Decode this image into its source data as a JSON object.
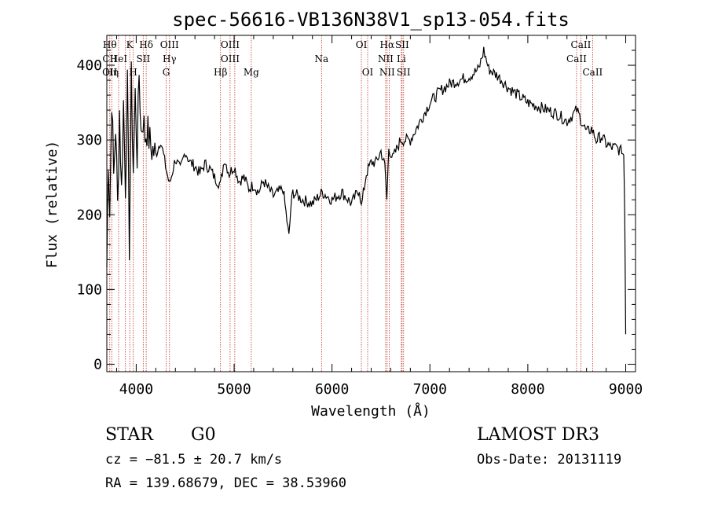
{
  "chart_data": {
    "type": "line",
    "title": "spec-56616-VB136N38V1_sp13-054.fits",
    "xlabel": "Wavelength (Å)",
    "ylabel": "Flux (relative)",
    "xlim": [
      3700,
      9100
    ],
    "ylim": [
      -10,
      440
    ],
    "x_ticks": [
      4000,
      5000,
      6000,
      7000,
      8000,
      9000
    ],
    "y_ticks": [
      0,
      100,
      200,
      300,
      400
    ],
    "line_color": "#000000",
    "marker_color": "#c0392b",
    "series": [
      {
        "name": "flux",
        "x": [
          3700,
          3715,
          3730,
          3750,
          3770,
          3790,
          3810,
          3830,
          3850,
          3870,
          3890,
          3910,
          3930,
          3950,
          3970,
          3990,
          4010,
          4030,
          4050,
          4070,
          4090,
          4110,
          4150,
          4200,
          4250,
          4300,
          4340,
          4400,
          4450,
          4500,
          4550,
          4600,
          4650,
          4700,
          4750,
          4800,
          4860,
          4900,
          4950,
          5000,
          5050,
          5100,
          5150,
          5200,
          5250,
          5300,
          5400,
          5500,
          5560,
          5580,
          5600,
          5650,
          5700,
          5800,
          5900,
          6000,
          6100,
          6200,
          6280,
          6300,
          6350,
          6400,
          6450,
          6500,
          6540,
          6560,
          6580,
          6620,
          6700,
          6800,
          6900,
          7000,
          7100,
          7200,
          7300,
          7400,
          7500,
          7550,
          7600,
          7700,
          7800,
          7900,
          8000,
          8100,
          8200,
          8300,
          8400,
          8500,
          8600,
          8650,
          8700,
          8750,
          8800,
          8850,
          8900,
          8950,
          8980,
          8990,
          9000
        ],
        "y": [
          130,
          280,
          200,
          360,
          250,
          320,
          210,
          340,
          230,
          350,
          240,
          370,
          160,
          380,
          260,
          360,
          280,
          390,
          310,
          330,
          305,
          315,
          290,
          280,
          300,
          265,
          240,
          275,
          260,
          285,
          270,
          265,
          255,
          268,
          262,
          250,
          240,
          275,
          255,
          265,
          245,
          250,
          235,
          240,
          230,
          245,
          225,
          235,
          170,
          210,
          230,
          225,
          220,
          215,
          230,
          220,
          230,
          215,
          235,
          210,
          255,
          270,
          270,
          285,
          265,
          220,
          290,
          275,
          300,
          300,
          325,
          350,
          365,
          375,
          380,
          385,
          395,
          420,
          395,
          385,
          370,
          360,
          350,
          345,
          340,
          335,
          325,
          340,
          310,
          315,
          300,
          305,
          295,
          290,
          290,
          285,
          280,
          200,
          40
        ]
      }
    ],
    "line_ids": [
      {
        "wl": 3730,
        "rows": [
          "Hθ",
          "CII",
          "OII"
        ]
      },
      {
        "wl": 3750,
        "rows": [
          "",
          "",
          "Hη"
        ]
      },
      {
        "wl": 3820,
        "rows": [
          "",
          "HeI",
          ""
        ]
      },
      {
        "wl": 3890,
        "rows": [
          "",
          "",
          ""
        ]
      },
      {
        "wl": 3934,
        "rows": [
          "K",
          "",
          ""
        ]
      },
      {
        "wl": 3970,
        "rows": [
          "",
          "",
          "H"
        ]
      },
      {
        "wl": 4072,
        "rows": [
          "",
          "SII",
          ""
        ]
      },
      {
        "wl": 4102,
        "rows": [
          "Hδ",
          "",
          ""
        ]
      },
      {
        "wl": 4306,
        "rows": [
          "",
          "",
          "G"
        ]
      },
      {
        "wl": 4340,
        "rows": [
          "OIII",
          "Hγ",
          ""
        ]
      },
      {
        "wl": 4861,
        "rows": [
          "",
          "",
          "Hβ"
        ]
      },
      {
        "wl": 4959,
        "rows": [
          "OIII",
          "OIII",
          ""
        ]
      },
      {
        "wl": 5007,
        "rows": [
          "",
          "",
          ""
        ]
      },
      {
        "wl": 5175,
        "rows": [
          "",
          "",
          "Mg"
        ]
      },
      {
        "wl": 5893,
        "rows": [
          "",
          "Na",
          ""
        ]
      },
      {
        "wl": 6300,
        "rows": [
          "OI",
          "",
          ""
        ]
      },
      {
        "wl": 6364,
        "rows": [
          "",
          "",
          "OI"
        ]
      },
      {
        "wl": 6548,
        "rows": [
          "",
          "NII",
          ""
        ]
      },
      {
        "wl": 6563,
        "rows": [
          "Hα",
          "",
          "NII"
        ]
      },
      {
        "wl": 6584,
        "rows": [
          "",
          "",
          ""
        ]
      },
      {
        "wl": 6716,
        "rows": [
          "SII",
          "",
          ""
        ]
      },
      {
        "wl": 6731,
        "rows": [
          "",
          "",
          "SII"
        ]
      },
      {
        "wl": 6708,
        "rows": [
          "",
          "Li",
          ""
        ]
      },
      {
        "wl": 8498,
        "rows": [
          "",
          "CaII",
          ""
        ]
      },
      {
        "wl": 8542,
        "rows": [
          "CaII",
          "",
          ""
        ]
      },
      {
        "wl": 8662,
        "rows": [
          "",
          "",
          "CaII"
        ]
      }
    ]
  },
  "info": {
    "object_class": "STAR",
    "subclass": "G0",
    "survey": "LAMOST DR3",
    "redshift": "cz = −81.5 ± 20.7 km/s",
    "obs_date": "Obs-Date: 20131119",
    "coords": "RA = 139.68679, DEC =  38.53960"
  }
}
